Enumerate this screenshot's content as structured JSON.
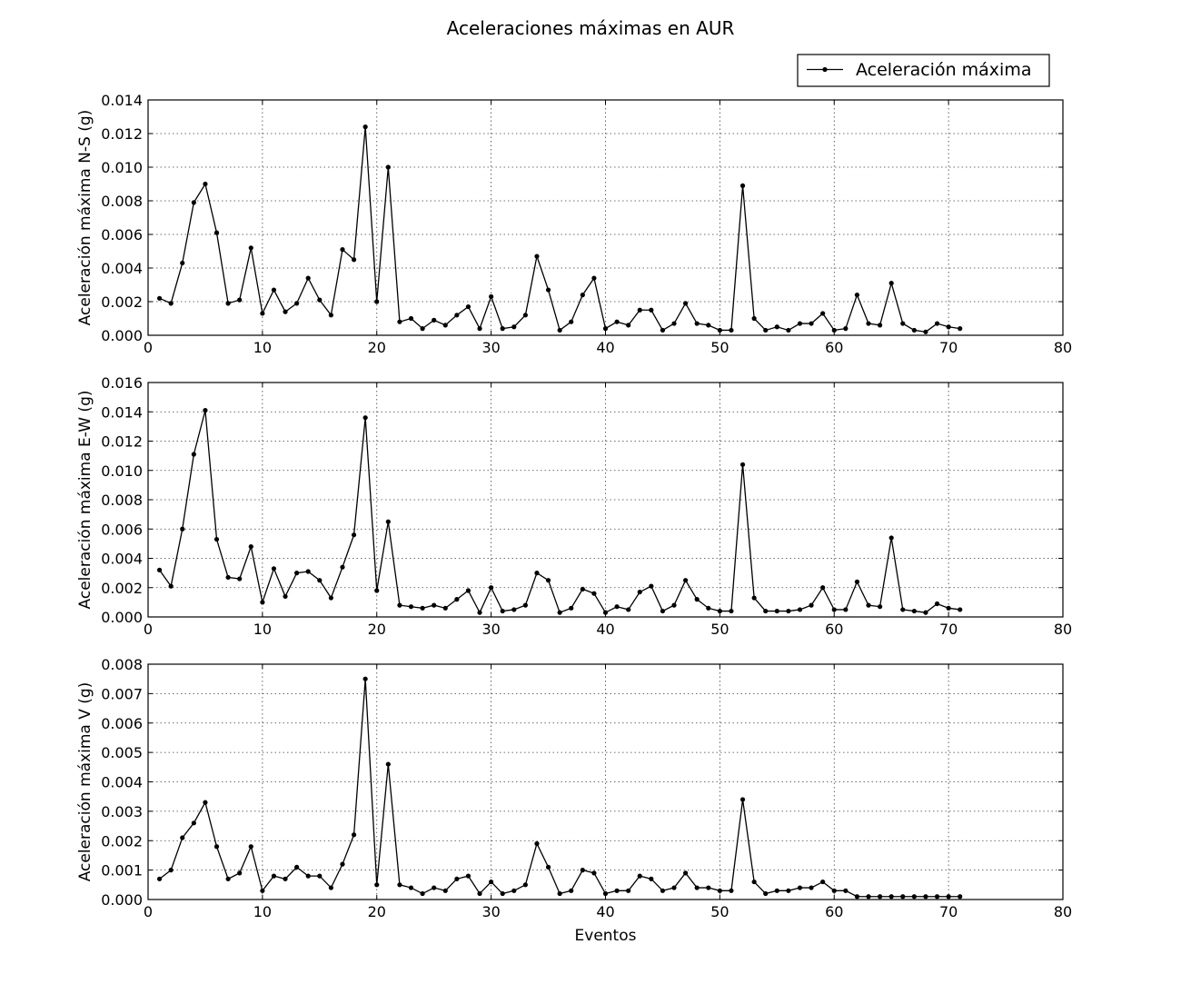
{
  "chart_data": {
    "type": "line",
    "title": "Aceleraciones máximas en AUR",
    "legend": {
      "label": "Aceleración máxima",
      "placement": "top-right"
    },
    "colors": {
      "line": "#000000",
      "marker": "#000000"
    },
    "grid": true,
    "subplots": [
      {
        "ylabel": "Aceleración máxima N-S (g)",
        "xlabel": "",
        "xlim": [
          0,
          80
        ],
        "ylim": [
          0,
          0.014
        ],
        "xticks": [
          "0",
          "10",
          "20",
          "30",
          "40",
          "50",
          "60",
          "70",
          "80"
        ],
        "yticks": [
          "0.000",
          "0.002",
          "0.004",
          "0.006",
          "0.008",
          "0.010",
          "0.012",
          "0.014"
        ],
        "series": [
          {
            "x": [
              1,
              2,
              3,
              4,
              5,
              6,
              7,
              8,
              9,
              10,
              11,
              12,
              13,
              14,
              15,
              16,
              17,
              18,
              19,
              20,
              21,
              22,
              23,
              24,
              25,
              26,
              27,
              28,
              29,
              30,
              31,
              32,
              33,
              34,
              35,
              36,
              37,
              38,
              39,
              40,
              41,
              42,
              43,
              44,
              45,
              46,
              47,
              48,
              49,
              50,
              51,
              52,
              53,
              54,
              55,
              56,
              57,
              58,
              59,
              60,
              61,
              62,
              63,
              64,
              65,
              66,
              67,
              68,
              69,
              70,
              71
            ],
            "y": [
              0.0022,
              0.0019,
              0.0043,
              0.0079,
              0.009,
              0.0061,
              0.0019,
              0.0021,
              0.0052,
              0.0013,
              0.0027,
              0.0014,
              0.0019,
              0.0034,
              0.0021,
              0.0012,
              0.0051,
              0.0045,
              0.0124,
              0.002,
              0.01,
              0.0008,
              0.001,
              0.0004,
              0.0009,
              0.0006,
              0.0012,
              0.0017,
              0.0004,
              0.0023,
              0.0004,
              0.0005,
              0.0012,
              0.0047,
              0.0027,
              0.0003,
              0.0008,
              0.0024,
              0.0034,
              0.0004,
              0.0008,
              0.0006,
              0.0015,
              0.0015,
              0.0003,
              0.0007,
              0.0019,
              0.0007,
              0.0006,
              0.0003,
              0.0003,
              0.0089,
              0.001,
              0.0003,
              0.0005,
              0.0003,
              0.0007,
              0.0007,
              0.0013,
              0.0003,
              0.0004,
              0.0024,
              0.0007,
              0.0006,
              0.0031,
              0.0007,
              0.0003,
              0.0002,
              0.0007,
              0.0005,
              0.0004
            ]
          }
        ]
      },
      {
        "ylabel": "Aceleración máxima E-W (g)",
        "xlabel": "",
        "xlim": [
          0,
          80
        ],
        "ylim": [
          0,
          0.016
        ],
        "xticks": [
          "0",
          "10",
          "20",
          "30",
          "40",
          "50",
          "60",
          "70",
          "80"
        ],
        "yticks": [
          "0.000",
          "0.002",
          "0.004",
          "0.006",
          "0.008",
          "0.010",
          "0.012",
          "0.014",
          "0.016"
        ],
        "series": [
          {
            "x": [
              1,
              2,
              3,
              4,
              5,
              6,
              7,
              8,
              9,
              10,
              11,
              12,
              13,
              14,
              15,
              16,
              17,
              18,
              19,
              20,
              21,
              22,
              23,
              24,
              25,
              26,
              27,
              28,
              29,
              30,
              31,
              32,
              33,
              34,
              35,
              36,
              37,
              38,
              39,
              40,
              41,
              42,
              43,
              44,
              45,
              46,
              47,
              48,
              49,
              50,
              51,
              52,
              53,
              54,
              55,
              56,
              57,
              58,
              59,
              60,
              61,
              62,
              63,
              64,
              65,
              66,
              67,
              68,
              69,
              70,
              71
            ],
            "y": [
              0.0032,
              0.0021,
              0.006,
              0.0111,
              0.0141,
              0.0053,
              0.0027,
              0.0026,
              0.0048,
              0.001,
              0.0033,
              0.0014,
              0.003,
              0.0031,
              0.0025,
              0.0013,
              0.0034,
              0.0056,
              0.0136,
              0.0018,
              0.0065,
              0.0008,
              0.0007,
              0.0006,
              0.0008,
              0.0006,
              0.0012,
              0.0018,
              0.0003,
              0.002,
              0.0004,
              0.0005,
              0.0008,
              0.003,
              0.0025,
              0.0003,
              0.0006,
              0.0019,
              0.0016,
              0.0003,
              0.0007,
              0.0005,
              0.0017,
              0.0021,
              0.0004,
              0.0008,
              0.0025,
              0.0012,
              0.0006,
              0.0004,
              0.0004,
              0.0104,
              0.0013,
              0.0004,
              0.0004,
              0.0004,
              0.0005,
              0.0008,
              0.002,
              0.0005,
              0.0005,
              0.0024,
              0.0008,
              0.0007,
              0.0054,
              0.0005,
              0.0004,
              0.0003,
              0.0009,
              0.0006,
              0.0005
            ]
          }
        ]
      },
      {
        "ylabel": "Aceleración máxima V (g)",
        "xlabel": "Eventos",
        "xlim": [
          0,
          80
        ],
        "ylim": [
          0,
          0.008
        ],
        "xticks": [
          "0",
          "10",
          "20",
          "30",
          "40",
          "50",
          "60",
          "70",
          "80"
        ],
        "yticks": [
          "0.000",
          "0.001",
          "0.002",
          "0.003",
          "0.004",
          "0.005",
          "0.006",
          "0.007",
          "0.008"
        ],
        "series": [
          {
            "x": [
              1,
              2,
              3,
              4,
              5,
              6,
              7,
              8,
              9,
              10,
              11,
              12,
              13,
              14,
              15,
              16,
              17,
              18,
              19,
              20,
              21,
              22,
              23,
              24,
              25,
              26,
              27,
              28,
              29,
              30,
              31,
              32,
              33,
              34,
              35,
              36,
              37,
              38,
              39,
              40,
              41,
              42,
              43,
              44,
              45,
              46,
              47,
              48,
              49,
              50,
              51,
              52,
              53,
              54,
              55,
              56,
              57,
              58,
              59,
              60,
              61,
              62,
              63,
              64,
              65,
              66,
              67,
              68,
              69,
              70,
              71
            ],
            "y": [
              0.0007,
              0.001,
              0.0021,
              0.0026,
              0.0033,
              0.0018,
              0.0007,
              0.0009,
              0.0018,
              0.0003,
              0.0008,
              0.0007,
              0.0011,
              0.0008,
              0.0008,
              0.0004,
              0.0012,
              0.0022,
              0.0075,
              0.0005,
              0.0046,
              0.0005,
              0.0004,
              0.0002,
              0.0004,
              0.0003,
              0.0007,
              0.0008,
              0.0002,
              0.0006,
              0.0002,
              0.0003,
              0.0005,
              0.0019,
              0.0011,
              0.0002,
              0.0003,
              0.001,
              0.0009,
              0.0002,
              0.0003,
              0.0003,
              0.0008,
              0.0007,
              0.0003,
              0.0004,
              0.0009,
              0.0004,
              0.0004,
              0.0003,
              0.0003,
              0.0034,
              0.0006,
              0.0002,
              0.0003,
              0.0003,
              0.0004,
              0.0004,
              0.0006,
              0.0003,
              0.0003,
              0.0001,
              0.0001,
              0.0001,
              0.0001,
              0.0001,
              0.0001,
              0.0001,
              0.0001,
              0.0001,
              0.0001
            ]
          }
        ]
      }
    ]
  }
}
